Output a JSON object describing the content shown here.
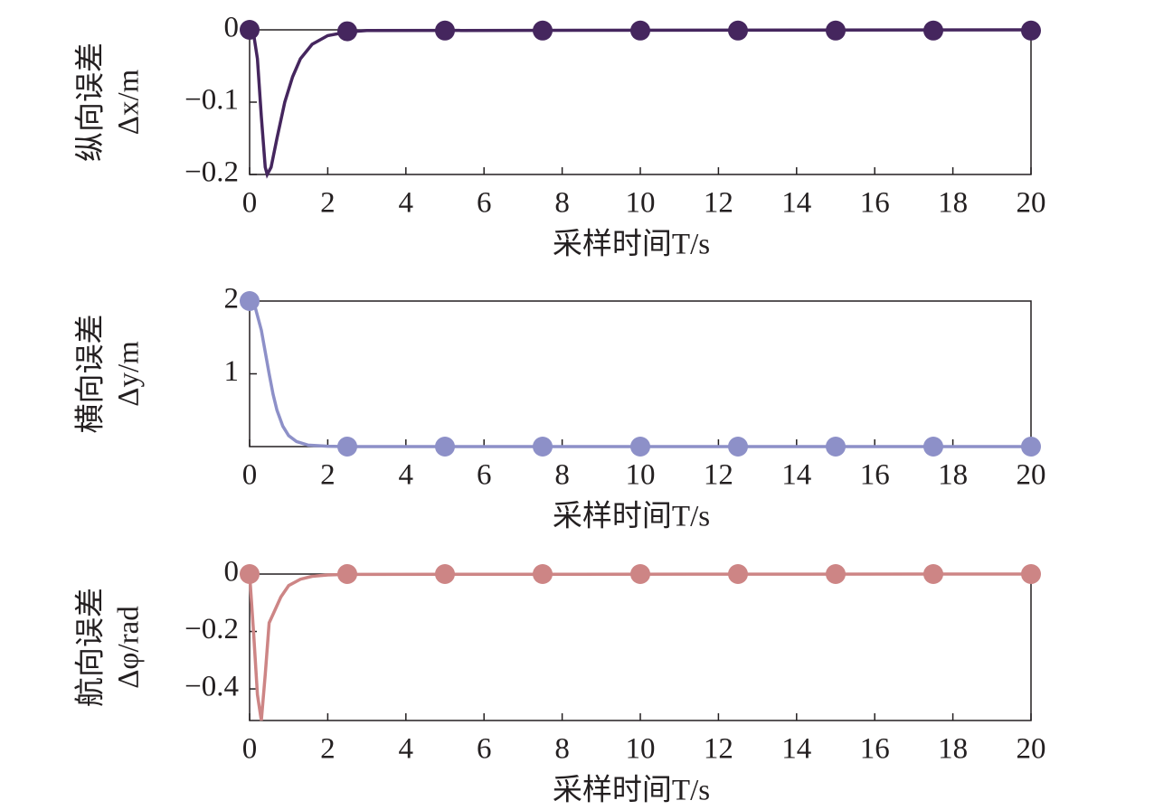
{
  "chart_data": [
    {
      "type": "line",
      "xlabel": "采样时间T/s",
      "ylabel": [
        "纵向误差",
        "Δx/m"
      ],
      "xlim": [
        0,
        20
      ],
      "xticks": [
        0,
        2,
        4,
        6,
        8,
        10,
        12,
        14,
        16,
        18,
        20
      ],
      "ylim": [
        -0.2,
        0
      ],
      "yticks": [
        {
          "value": -0.2,
          "label": "−0.2"
        },
        {
          "value": -0.1,
          "label": "−0.1"
        },
        0
      ],
      "series": [
        {
          "style": "line",
          "color": "#45265e",
          "x": [
            0,
            0.1,
            0.2,
            0.3,
            0.4,
            0.45,
            0.55,
            0.7,
            0.9,
            1.1,
            1.3,
            1.6,
            2.0,
            2.5,
            3,
            20
          ],
          "values": [
            0,
            -0.005,
            -0.04,
            -0.12,
            -0.19,
            -0.2,
            -0.19,
            -0.15,
            -0.1,
            -0.065,
            -0.04,
            -0.02,
            -0.008,
            -0.003,
            -0.001,
            0
          ]
        },
        {
          "style": "marker",
          "color": "#45265e",
          "x": [
            0,
            2.5,
            5,
            7.5,
            10,
            12.5,
            15,
            17.5,
            20
          ],
          "values": [
            0,
            -0.002,
            -0.001,
            -0.001,
            -0.001,
            -0.001,
            -0.001,
            -0.001,
            -0.001
          ]
        }
      ]
    },
    {
      "type": "line",
      "xlabel": "采样时间T/s",
      "ylabel": [
        "横向误差",
        "Δy/m"
      ],
      "xlim": [
        0,
        20
      ],
      "xticks": [
        0,
        2,
        4,
        6,
        8,
        10,
        12,
        14,
        16,
        18,
        20
      ],
      "ylim": [
        0,
        2
      ],
      "yticks": [
        1,
        2
      ],
      "series": [
        {
          "style": "line",
          "color": "#8d90c8",
          "x": [
            0,
            0.15,
            0.3,
            0.4,
            0.5,
            0.6,
            0.7,
            0.85,
            1.0,
            1.2,
            1.5,
            2.0,
            2.5,
            20
          ],
          "values": [
            2,
            1.9,
            1.6,
            1.3,
            1.0,
            0.72,
            0.5,
            0.28,
            0.15,
            0.07,
            0.02,
            0.005,
            0,
            0
          ]
        },
        {
          "style": "marker",
          "color": "#8d90c8",
          "x": [
            0,
            2.5,
            5,
            7.5,
            10,
            12.5,
            15,
            17.5,
            20
          ],
          "values": [
            2,
            0,
            0,
            0,
            0,
            0,
            0,
            0,
            0
          ]
        }
      ]
    },
    {
      "type": "line",
      "xlabel": "采样时间T/s",
      "ylabel": [
        "航向误差",
        "Δφ/rad"
      ],
      "xlim": [
        0,
        20
      ],
      "xticks": [
        0,
        2,
        4,
        6,
        8,
        10,
        12,
        14,
        16,
        18,
        20
      ],
      "ylim": [
        -0.51,
        0
      ],
      "yticks": [
        {
          "value": -0.4,
          "label": "−0.4"
        },
        {
          "value": -0.2,
          "label": "−0.2"
        },
        0
      ],
      "series": [
        {
          "style": "line",
          "color": "#cd8585",
          "x": [
            0,
            0.1,
            0.2,
            0.3,
            0.4,
            0.5,
            0.6,
            0.8,
            1.0,
            1.3,
            1.6,
            2.0,
            2.5,
            20
          ],
          "values": [
            0,
            -0.2,
            -0.42,
            -0.51,
            -0.35,
            -0.17,
            -0.14,
            -0.08,
            -0.04,
            -0.018,
            -0.008,
            -0.003,
            -0.001,
            0
          ]
        },
        {
          "style": "marker",
          "color": "#cd8585",
          "x": [
            0,
            2.5,
            5,
            7.5,
            10,
            12.5,
            15,
            17.5,
            20
          ],
          "values": [
            0,
            0,
            0,
            0,
            0,
            0,
            0,
            0,
            0
          ]
        }
      ]
    }
  ]
}
